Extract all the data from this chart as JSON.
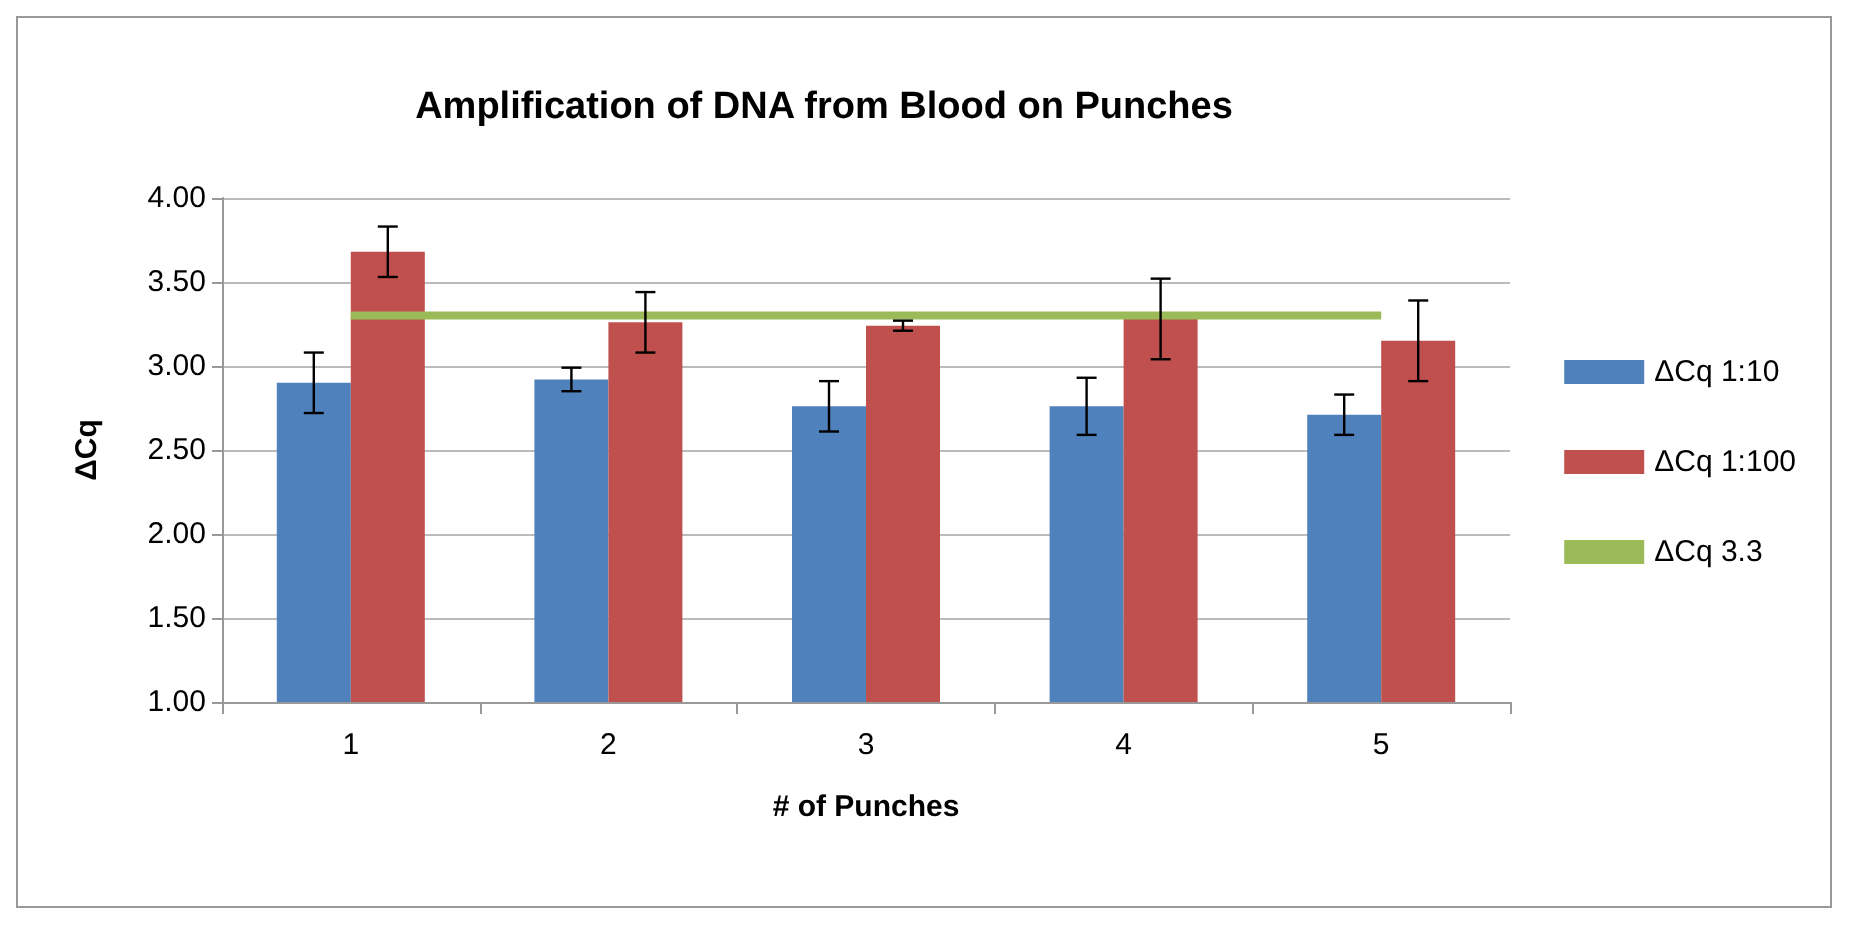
{
  "chart_data": {
    "type": "bar",
    "title": "Amplification of DNA from Blood on Punches",
    "xlabel": "# of Punches",
    "ylabel": "ΔCq",
    "categories": [
      "1",
      "2",
      "3",
      "4",
      "5"
    ],
    "series": [
      {
        "name": "ΔCq 1:10",
        "color": "#4f81bd",
        "values": [
          2.9,
          2.92,
          2.76,
          2.76,
          2.71
        ],
        "errors": [
          0.18,
          0.07,
          0.15,
          0.17,
          0.12
        ]
      },
      {
        "name": "ΔCq 1:100",
        "color": "#c0504d",
        "values": [
          3.68,
          3.26,
          3.24,
          3.28,
          3.15
        ],
        "errors": [
          0.15,
          0.18,
          0.03,
          0.24,
          0.24
        ]
      },
      {
        "name": "ΔCq 3.3",
        "type": "line",
        "color": "#9bbb59",
        "values": [
          3.3,
          3.3,
          3.3,
          3.3,
          3.3
        ]
      }
    ],
    "ylim": [
      1,
      4
    ],
    "yticks": [
      {
        "value": 1,
        "label": "1.00"
      },
      {
        "value": 1.5,
        "label": "1.50"
      },
      {
        "value": 2,
        "label": "2.00"
      },
      {
        "value": 2.5,
        "label": "2.50"
      },
      {
        "value": 3,
        "label": "3.00"
      },
      {
        "value": 3.5,
        "label": "3.50"
      },
      {
        "value": 4,
        "label": "4.00"
      }
    ],
    "grid": "y",
    "legend": "right",
    "marker": "none"
  }
}
